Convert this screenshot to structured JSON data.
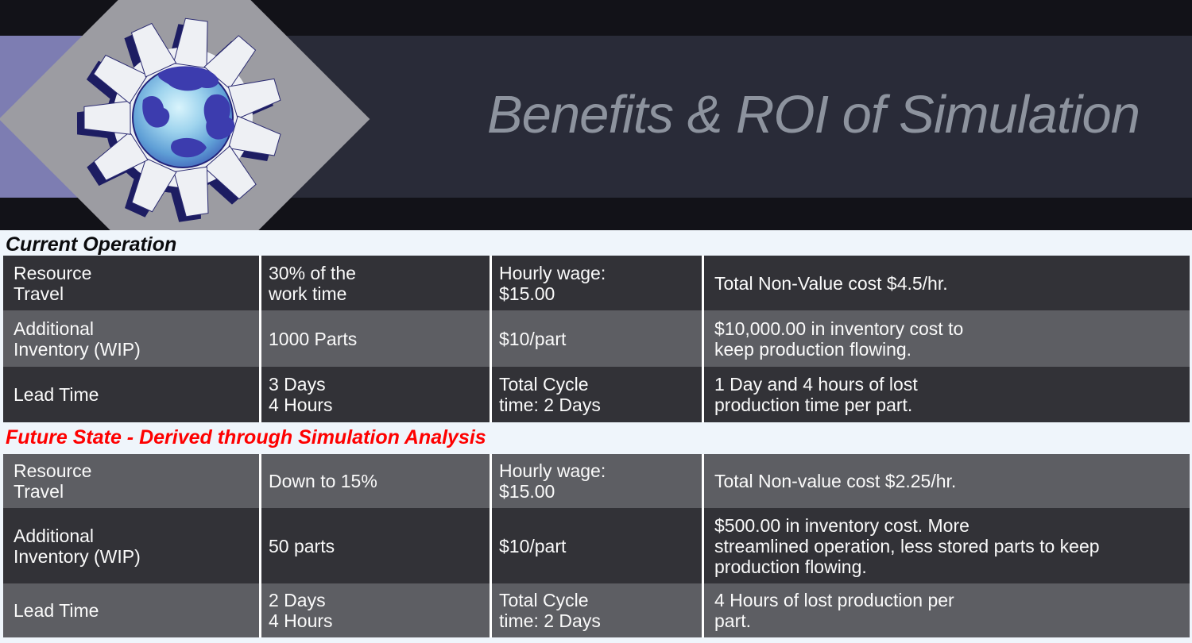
{
  "header": {
    "title": "Benefits & ROI of Simulation",
    "logo_icon": "globe-gear-logo"
  },
  "colors": {
    "page_background": "#eff5fb",
    "band_black": "#121218",
    "band_navy": "#292b38",
    "band_purple": "#7d7db2",
    "diamond_gray": "#9c9ca2",
    "title_text": "#8d939e",
    "row_dark": "#323237",
    "row_medium": "#5d5e63",
    "divider_white": "#ffffff",
    "heading_current": "#0b0b0d",
    "heading_future": "#fe0000",
    "cell_text": "#fafafa"
  },
  "sections": [
    {
      "heading": "Current Operation",
      "rows": [
        {
          "shade": "dark",
          "cells": [
            [
              "Resource",
              "Travel"
            ],
            [
              "30% of the",
              "work time"
            ],
            [
              "Hourly wage:",
              "$15.00"
            ],
            [
              "Total Non-Value cost $4.5/hr."
            ]
          ]
        },
        {
          "shade": "medium",
          "cells": [
            [
              "Additional",
              "Inventory (WIP)"
            ],
            [
              "1000 Parts"
            ],
            [
              "$10/part"
            ],
            [
              "$10,000.00 in inventory cost to",
              "keep production flowing."
            ]
          ]
        },
        {
          "shade": "dark",
          "cells": [
            [
              "Lead Time"
            ],
            [
              "3 Days",
              "4 Hours"
            ],
            [
              "Total Cycle",
              "time: 2 Days"
            ],
            [
              "1 Day and 4 hours of lost",
              "production time per part."
            ]
          ]
        }
      ]
    },
    {
      "heading": "Future State - Derived through Simulation Analysis",
      "rows": [
        {
          "shade": "medium",
          "cells": [
            [
              "Resource",
              "Travel"
            ],
            [
              "Down to 15%"
            ],
            [
              "Hourly wage:",
              "$15.00"
            ],
            [
              "Total Non-value cost $2.25/hr."
            ]
          ]
        },
        {
          "shade": "dark",
          "cells": [
            [
              "Additional",
              "Inventory (WIP)"
            ],
            [
              "50 parts"
            ],
            [
              "$10/part"
            ],
            [
              "$500.00 in inventory cost. More",
              "streamlined operation, less stored parts to keep",
              "production flowing."
            ]
          ]
        },
        {
          "shade": "medium",
          "cells": [
            [
              "Lead Time"
            ],
            [
              "2 Days",
              "4 Hours"
            ],
            [
              "Total Cycle",
              "time: 2 Days"
            ],
            [
              "4 Hours of lost production per",
              "part."
            ]
          ]
        }
      ]
    }
  ]
}
